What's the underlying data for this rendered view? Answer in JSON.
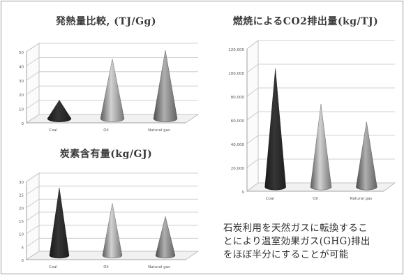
{
  "chart_data": [
    {
      "id": "heat",
      "type": "bar",
      "title": "発熱量比較, (TJ/Gg)",
      "categories": [
        "Coal",
        "Oil",
        "Natural gas"
      ],
      "values": [
        13,
        42,
        48
      ],
      "ylim": [
        0,
        50
      ],
      "ticks": [
        0,
        10,
        20,
        30,
        40,
        50
      ],
      "tick_labels": [
        "0",
        "10",
        "20",
        "30",
        "40",
        "50"
      ],
      "grid": true,
      "shape": "cone",
      "colors": [
        "#2b2b2b",
        "#a8a8a8",
        "#8c8c8c"
      ]
    },
    {
      "id": "carbon",
      "type": "bar",
      "title": "炭素含有量(kg/GJ)",
      "categories": [
        "Coal",
        "Oil",
        "Natural gas"
      ],
      "values": [
        26,
        20,
        15
      ],
      "ylim": [
        0,
        30
      ],
      "ticks": [
        0,
        5,
        10,
        15,
        20,
        25,
        30
      ],
      "tick_labels": [
        "0",
        "5",
        "10",
        "15",
        "20",
        "25",
        "30"
      ],
      "grid": true,
      "shape": "cone",
      "colors": [
        "#2b2b2b",
        "#a8a8a8",
        "#8c8c8c"
      ]
    },
    {
      "id": "co2",
      "type": "bar",
      "title": "燃焼によるCO2排出量(kg/TJ)",
      "categories": [
        "Coal",
        "Oil",
        "Natural gas"
      ],
      "values": [
        100000,
        70000,
        55000
      ],
      "ylim": [
        0,
        120000
      ],
      "ticks": [
        0,
        20000,
        40000,
        60000,
        80000,
        100000,
        120000
      ],
      "tick_labels": [
        "0",
        "20,000",
        "40,000",
        "60,000",
        "80,000",
        "100,000",
        "120,000"
      ],
      "grid": true,
      "shape": "cone",
      "colors": [
        "#2b2b2b",
        "#a8a8a8",
        "#8c8c8c"
      ]
    }
  ],
  "note": {
    "lines": [
      "石炭利用を天然ガスに転換するこ",
      "とにより温室効果ガス(GHG)排出",
      "をほぼ半分にすることが可能"
    ]
  }
}
